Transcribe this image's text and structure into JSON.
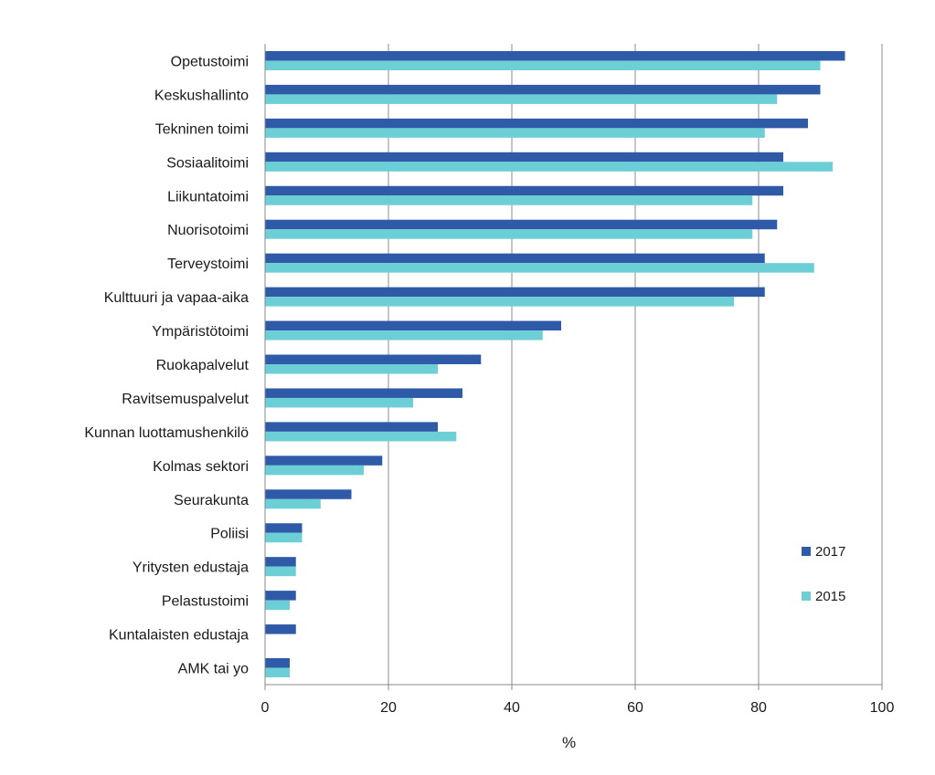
{
  "chart_data": {
    "type": "bar",
    "orientation": "horizontal",
    "categories": [
      "Opetustoimi",
      "Keskushallinto",
      "Tekninen toimi",
      "Sosiaalitoimi",
      "Liikuntatoimi",
      "Nuorisotoimi",
      "Terveystoimi",
      "Kulttuuri ja vapaa-aika",
      "Ympäristötoimi",
      "Ruokapalvelut",
      "Ravitsemuspalvelut",
      "Kunnan luottamushenkilö",
      "Kolmas sektori",
      "Seurakunta",
      "Poliisi",
      "Yritysten edustaja",
      "Pelastustoimi",
      "Kuntalaisten edustaja",
      "AMK tai yo"
    ],
    "series": [
      {
        "name": "2017",
        "color": "#2e5aa8",
        "values": [
          94,
          90,
          88,
          84,
          84,
          83,
          81,
          81,
          48,
          35,
          32,
          28,
          19,
          14,
          6,
          5,
          5,
          5,
          4
        ]
      },
      {
        "name": "2015",
        "color": "#6ccfd6",
        "values": [
          90,
          83,
          81,
          92,
          79,
          79,
          89,
          76,
          45,
          28,
          24,
          31,
          16,
          9,
          6,
          5,
          4,
          0,
          4
        ]
      }
    ],
    "xlabel": "%",
    "ylabel": "",
    "xlim": [
      0,
      100
    ],
    "xticks": [
      "0",
      "20",
      "40",
      "60",
      "80",
      "100"
    ],
    "grid": "vertical",
    "legend": "bottom-right"
  }
}
